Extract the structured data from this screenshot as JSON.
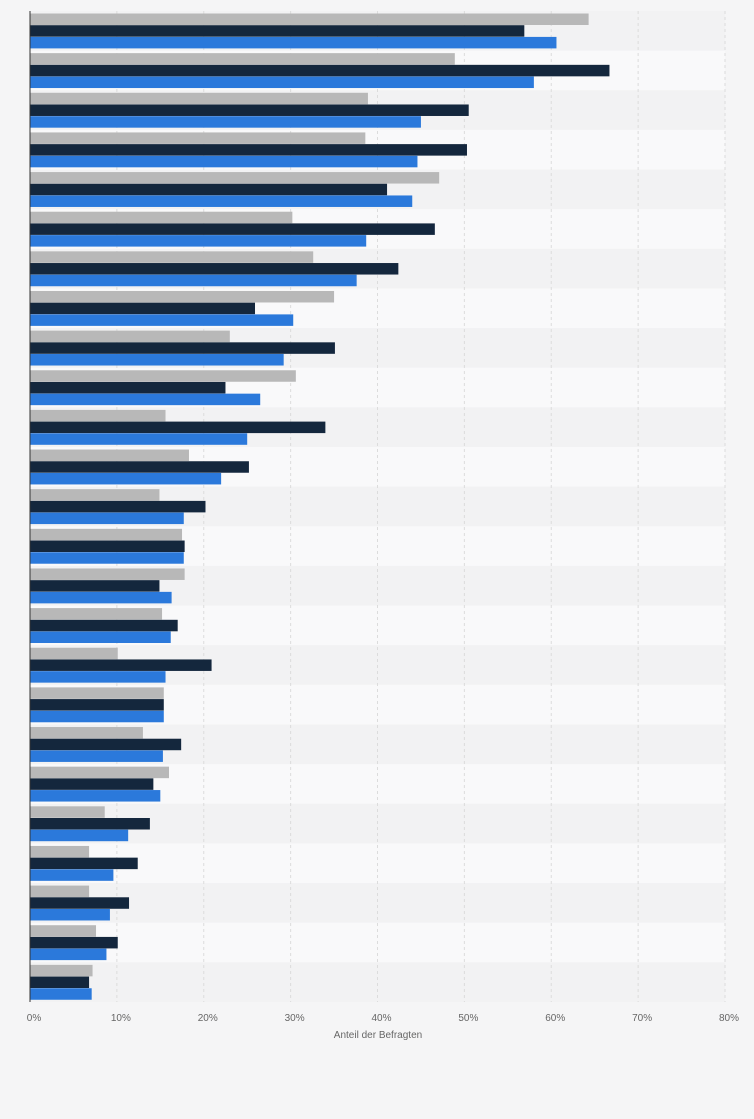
{
  "chart_data": {
    "type": "bar",
    "orientation": "horizontal",
    "title": "",
    "xlabel": "Anteil der Befragten",
    "ylabel": "",
    "xlim": [
      0,
      80
    ],
    "x_ticks": [
      0,
      10,
      20,
      30,
      40,
      50,
      60,
      70,
      80
    ],
    "x_tick_labels": [
      "0%",
      "10%",
      "20%",
      "30%",
      "40%",
      "50%",
      "60%",
      "70%",
      "80%"
    ],
    "grid": true,
    "legend": "none",
    "categories": [
      "",
      "",
      "",
      "",
      "",
      "",
      "",
      "",
      "",
      "",
      "",
      "",
      "",
      "",
      "",
      "",
      "",
      "",
      "",
      "",
      "",
      "",
      "",
      "",
      ""
    ],
    "series": [
      {
        "color": "#b8b8b8",
        "values": [
          64.3,
          48.9,
          38.9,
          38.6,
          47.1,
          30.2,
          32.6,
          35.0,
          23.0,
          30.6,
          15.6,
          18.3,
          14.9,
          17.5,
          17.8,
          15.2,
          10.1,
          15.4,
          13.0,
          16.0,
          8.6,
          6.8,
          6.8,
          7.6,
          7.2
        ]
      },
      {
        "color": "#14273d",
        "values": [
          56.9,
          66.7,
          50.5,
          50.3,
          41.1,
          46.6,
          42.4,
          25.9,
          35.1,
          22.5,
          34.0,
          25.2,
          20.2,
          17.8,
          14.9,
          17.0,
          20.9,
          15.4,
          17.4,
          14.2,
          13.8,
          12.4,
          11.4,
          10.1,
          6.8
        ]
      },
      {
        "color": "#2b79db",
        "values": [
          60.6,
          58.0,
          45.0,
          44.6,
          44.0,
          38.7,
          37.6,
          30.3,
          29.2,
          26.5,
          25.0,
          22.0,
          17.7,
          17.7,
          16.3,
          16.2,
          15.6,
          15.4,
          15.3,
          15.0,
          11.3,
          9.6,
          9.2,
          8.8,
          7.1
        ]
      }
    ]
  }
}
